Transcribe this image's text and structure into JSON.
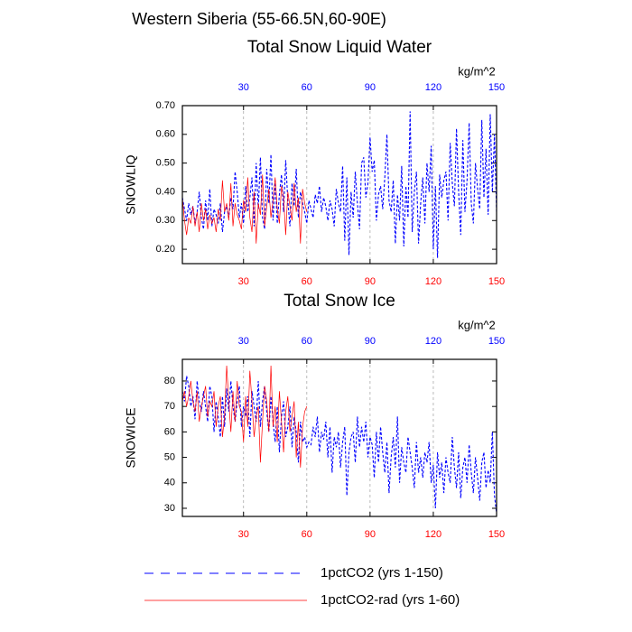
{
  "title": "Western Siberia (55-66.5N,60-90E)",
  "chart_data": [
    {
      "type": "line",
      "title": "Total Snow Liquid Water",
      "y_label": "SNOWLIQ",
      "x2_label": "kg/m^2",
      "xlim": [
        1,
        150
      ],
      "xticks": [
        30,
        60,
        90,
        120,
        150
      ],
      "xtick_color": "#ff0000",
      "x2tick_color": "#0000ff",
      "ylim": [
        0.15,
        0.7
      ],
      "yticks": [
        {
          "value": 0.2,
          "label": "0.20"
        },
        {
          "value": 0.3,
          "label": "0.30"
        },
        {
          "value": 0.4,
          "label": "0.40"
        },
        {
          "value": 0.5,
          "label": "0.50"
        },
        {
          "value": 0.6,
          "label": "0.60"
        },
        {
          "value": 0.7,
          "label": "0.70"
        }
      ],
      "grid": "x",
      "x": [
        1,
        2,
        3,
        4,
        5,
        6,
        7,
        8,
        9,
        10,
        11,
        12,
        13,
        14,
        15,
        16,
        17,
        18,
        19,
        20,
        21,
        22,
        23,
        24,
        25,
        26,
        27,
        28,
        29,
        30,
        31,
        32,
        33,
        34,
        35,
        36,
        37,
        38,
        39,
        40,
        41,
        42,
        43,
        44,
        45,
        46,
        47,
        48,
        49,
        50,
        51,
        52,
        53,
        54,
        55,
        56,
        57,
        58,
        59,
        60,
        61,
        62,
        63,
        64,
        65,
        66,
        67,
        68,
        69,
        70,
        71,
        72,
        73,
        74,
        75,
        76,
        77,
        78,
        79,
        80,
        81,
        82,
        83,
        84,
        85,
        86,
        87,
        88,
        89,
        90,
        91,
        92,
        93,
        94,
        95,
        96,
        97,
        98,
        99,
        100,
        101,
        102,
        103,
        104,
        105,
        106,
        107,
        108,
        109,
        110,
        111,
        112,
        113,
        114,
        115,
        116,
        117,
        118,
        119,
        120,
        121,
        122,
        123,
        124,
        125,
        126,
        127,
        128,
        129,
        130,
        131,
        132,
        133,
        134,
        135,
        136,
        137,
        138,
        139,
        140,
        141,
        142,
        143,
        144,
        145,
        146,
        147,
        148,
        149,
        150
      ],
      "series": [
        {
          "name": "1pctCO2 (yrs 1-150)",
          "color": "#0000ff",
          "line_style": "dashed",
          "values": [
            0.38,
            0.34,
            0.3,
            0.36,
            0.32,
            0.35,
            0.29,
            0.33,
            0.4,
            0.31,
            0.27,
            0.37,
            0.3,
            0.41,
            0.28,
            0.34,
            0.32,
            0.29,
            0.36,
            0.26,
            0.33,
            0.35,
            0.31,
            0.38,
            0.34,
            0.47,
            0.4,
            0.31,
            0.36,
            0.29,
            0.42,
            0.33,
            0.38,
            0.45,
            0.28,
            0.5,
            0.34,
            0.52,
            0.31,
            0.27,
            0.48,
            0.36,
            0.53,
            0.3,
            0.44,
            0.29,
            0.39,
            0.46,
            0.33,
            0.51,
            0.37,
            0.28,
            0.43,
            0.35,
            0.48,
            0.31,
            0.4,
            0.36,
            0.33,
            0.29,
            0.37,
            0.34,
            0.31,
            0.39,
            0.36,
            0.42,
            0.33,
            0.38,
            0.35,
            0.3,
            0.37,
            0.34,
            0.28,
            0.41,
            0.36,
            0.33,
            0.49,
            0.23,
            0.45,
            0.18,
            0.4,
            0.31,
            0.47,
            0.36,
            0.27,
            0.5,
            0.52,
            0.38,
            0.43,
            0.59,
            0.47,
            0.51,
            0.3,
            0.39,
            0.42,
            0.34,
            0.45,
            0.6,
            0.37,
            0.33,
            0.44,
            0.22,
            0.39,
            0.3,
            0.49,
            0.21,
            0.42,
            0.31,
            0.68,
            0.26,
            0.4,
            0.47,
            0.22,
            0.36,
            0.45,
            0.29,
            0.5,
            0.4,
            0.56,
            0.2,
            0.42,
            0.17,
            0.46,
            0.38,
            0.44,
            0.47,
            0.3,
            0.57,
            0.43,
            0.35,
            0.62,
            0.4,
            0.25,
            0.58,
            0.33,
            0.44,
            0.64,
            0.36,
            0.29,
            0.5,
            0.41,
            0.34,
            0.65,
            0.38,
            0.55,
            0.32,
            0.67,
            0.4,
            0.6,
            0.33
          ]
        },
        {
          "name": "1pctCO2-rad (yrs 1-60)",
          "color": "#ff0000",
          "line_style": "solid",
          "x": [
            1,
            2,
            3,
            4,
            5,
            6,
            7,
            8,
            9,
            10,
            11,
            12,
            13,
            14,
            15,
            16,
            17,
            18,
            19,
            20,
            21,
            22,
            23,
            24,
            25,
            26,
            27,
            28,
            29,
            30,
            31,
            32,
            33,
            34,
            35,
            36,
            37,
            38,
            39,
            40,
            41,
            42,
            43,
            44,
            45,
            46,
            47,
            48,
            49,
            50,
            51,
            52,
            53,
            54,
            55,
            56,
            57,
            58,
            59,
            60
          ],
          "values": [
            0.38,
            0.3,
            0.25,
            0.31,
            0.29,
            0.35,
            0.28,
            0.33,
            0.26,
            0.36,
            0.3,
            0.34,
            0.27,
            0.32,
            0.29,
            0.31,
            0.26,
            0.34,
            0.3,
            0.44,
            0.33,
            0.36,
            0.3,
            0.43,
            0.28,
            0.36,
            0.32,
            0.3,
            0.27,
            0.37,
            0.33,
            0.45,
            0.31,
            0.26,
            0.4,
            0.22,
            0.36,
            0.32,
            0.46,
            0.28,
            0.35,
            0.41,
            0.31,
            0.37,
            0.45,
            0.34,
            0.29,
            0.42,
            0.38,
            0.25,
            0.4,
            0.35,
            0.3,
            0.43,
            0.33,
            0.38,
            0.22,
            0.41,
            0.36,
            0.33
          ]
        }
      ]
    },
    {
      "type": "line",
      "title": "Total Snow Ice",
      "y_label": "SNOWICE",
      "x2_label": "kg/m^2",
      "xlim": [
        1,
        150
      ],
      "xticks": [
        30,
        60,
        90,
        120,
        150
      ],
      "xtick_color": "#ff0000",
      "x2tick_color": "#0000ff",
      "ylim": [
        26.8,
        88.5
      ],
      "yticks": [
        30,
        40,
        50,
        60,
        70,
        80
      ],
      "grid": "x",
      "x": [
        1,
        2,
        3,
        4,
        5,
        6,
        7,
        8,
        9,
        10,
        11,
        12,
        13,
        14,
        15,
        16,
        17,
        18,
        19,
        20,
        21,
        22,
        23,
        24,
        25,
        26,
        27,
        28,
        29,
        30,
        31,
        32,
        33,
        34,
        35,
        36,
        37,
        38,
        39,
        40,
        41,
        42,
        43,
        44,
        45,
        46,
        47,
        48,
        49,
        50,
        51,
        52,
        53,
        54,
        55,
        56,
        57,
        58,
        59,
        60,
        61,
        62,
        63,
        64,
        65,
        66,
        67,
        68,
        69,
        70,
        71,
        72,
        73,
        74,
        75,
        76,
        77,
        78,
        79,
        80,
        81,
        82,
        83,
        84,
        85,
        86,
        87,
        88,
        89,
        90,
        91,
        92,
        93,
        94,
        95,
        96,
        97,
        98,
        99,
        100,
        101,
        102,
        103,
        104,
        105,
        106,
        107,
        108,
        109,
        110,
        111,
        112,
        113,
        114,
        115,
        116,
        117,
        118,
        119,
        120,
        121,
        122,
        123,
        124,
        125,
        126,
        127,
        128,
        129,
        130,
        131,
        132,
        133,
        134,
        135,
        136,
        137,
        138,
        139,
        140,
        141,
        142,
        143,
        144,
        145,
        146,
        147,
        148,
        149,
        150
      ],
      "series": [
        {
          "color": "#0000ff",
          "line_style": "dashed",
          "values": [
            76,
            72,
            82,
            78,
            70,
            74,
            65,
            80,
            72,
            68,
            76,
            70,
            64,
            78,
            74,
            60,
            72,
            66,
            58,
            74,
            62,
            77,
            68,
            80,
            70,
            64,
            72,
            78,
            62,
            70,
            66,
            74,
            58,
            76,
            70,
            64,
            80,
            62,
            72,
            78,
            68,
            60,
            74,
            64,
            56,
            70,
            52,
            66,
            72,
            58,
            62,
            70,
            54,
            66,
            60,
            48,
            64,
            56,
            58,
            54,
            56,
            55,
            62,
            58,
            66,
            52,
            60,
            57,
            64,
            50,
            62,
            44,
            58,
            54,
            60,
            46,
            56,
            62,
            35,
            52,
            58,
            60,
            48,
            66,
            54,
            62,
            56,
            64,
            50,
            58,
            55,
            42,
            60,
            48,
            62,
            52,
            44,
            56,
            36,
            50,
            58,
            46,
            66,
            40,
            54,
            48,
            44,
            58,
            52,
            46,
            38,
            56,
            44,
            50,
            42,
            52,
            48,
            56,
            40,
            47,
            30,
            52,
            42,
            48,
            36,
            50,
            44,
            40,
            58,
            46,
            38,
            52,
            34,
            46,
            50,
            40,
            55,
            44,
            36,
            50,
            42,
            33,
            48,
            52,
            38,
            45,
            40,
            60,
            35,
            28
          ]
        },
        {
          "color": "#ff0000",
          "line_style": "solid",
          "x": [
            1,
            2,
            3,
            4,
            5,
            6,
            7,
            8,
            9,
            10,
            11,
            12,
            13,
            14,
            15,
            16,
            17,
            18,
            19,
            20,
            21,
            22,
            23,
            24,
            25,
            26,
            27,
            28,
            29,
            30,
            31,
            32,
            33,
            34,
            35,
            36,
            37,
            38,
            39,
            40,
            41,
            42,
            43,
            44,
            45,
            46,
            47,
            48,
            49,
            50,
            51,
            52,
            53,
            54,
            55,
            56,
            57,
            58,
            59,
            60
          ],
          "values": [
            72,
            76,
            70,
            74,
            80,
            72,
            68,
            76,
            64,
            70,
            74,
            78,
            66,
            72,
            70,
            76,
            62,
            70,
            74,
            58,
            66,
            86,
            72,
            60,
            76,
            64,
            80,
            70,
            68,
            56,
            74,
            62,
            84,
            72,
            58,
            66,
            70,
            48,
            64,
            78,
            72,
            60,
            86,
            62,
            70,
            56,
            76,
            64,
            52,
            68,
            74,
            60,
            66,
            72,
            50,
            64,
            46,
            62,
            68,
            70
          ]
        }
      ]
    }
  ]
}
